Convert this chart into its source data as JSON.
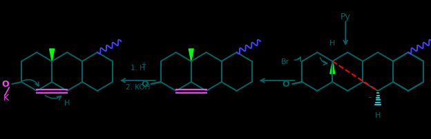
{
  "bg_color": "#000000",
  "teal": "#006868",
  "green": "#00ff00",
  "blue": "#4444ff",
  "magenta": "#ff44ff",
  "cyan": "#00ffff",
  "red": "#ff0000",
  "py_label": "Py",
  "br_label": "Br",
  "o_label": "O",
  "k_label": "K",
  "h_label": "H",
  "minus_label": "-",
  "step1": "1. H",
  "step1b": "+",
  "step2": "2. KOH"
}
